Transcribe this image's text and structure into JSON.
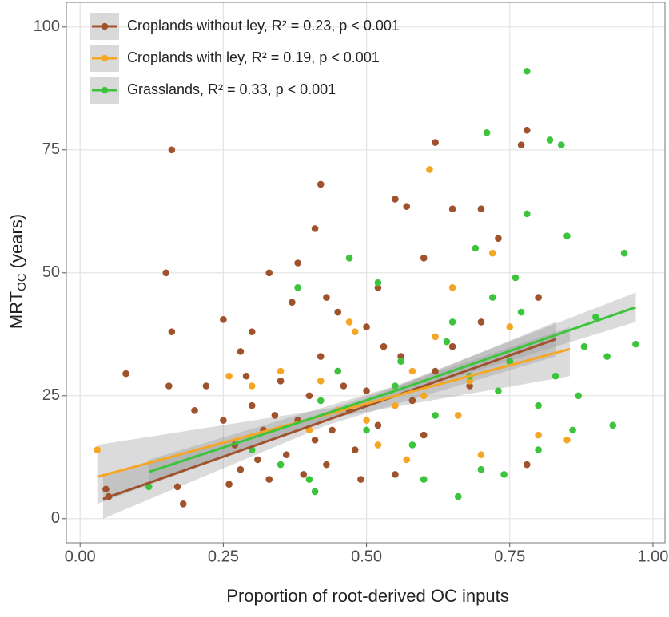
{
  "chart_data": {
    "type": "scatter",
    "x_label": "Proportion of root-derived OC inputs",
    "y_label": {
      "main": "MRT",
      "sub": "OC",
      "unit": "(years)"
    },
    "xlim": [
      -0.024,
      1.021
    ],
    "ylim": [
      -4.9,
      105
    ],
    "xticks": [
      {
        "value": 0,
        "label": "0.00"
      },
      0.25,
      {
        "value": 0.5,
        "label": "0.50"
      },
      0.75,
      {
        "value": 1,
        "label": "1.00"
      }
    ],
    "yticks": [
      0,
      25,
      50,
      75,
      100
    ],
    "grid": true,
    "legend": "top-left",
    "series": [
      {
        "name": "Croplands without ley, R² = 0.23, p < 0.001",
        "color": "#a0522d",
        "x": [
          0.08,
          0.16,
          0.15,
          0.16,
          0.155,
          0.17,
          0.18,
          0.05,
          0.045,
          0.42,
          0.41,
          0.62,
          0.78,
          0.77,
          0.55,
          0.57,
          0.25,
          0.28,
          0.3,
          0.33,
          0.37,
          0.38,
          0.43,
          0.45,
          0.5,
          0.52,
          0.6,
          0.65,
          0.7,
          0.73,
          0.2,
          0.22,
          0.25,
          0.27,
          0.28,
          0.3,
          0.32,
          0.33,
          0.35,
          0.36,
          0.38,
          0.4,
          0.41,
          0.43,
          0.45,
          0.47,
          0.48,
          0.5,
          0.52,
          0.55,
          0.56,
          0.58,
          0.6,
          0.62,
          0.65,
          0.68,
          0.7,
          0.75,
          0.78,
          0.8,
          0.26,
          0.29,
          0.31,
          0.34,
          0.39,
          0.42,
          0.44,
          0.46,
          0.49,
          0.53
        ],
        "values": [
          29.5,
          75,
          50,
          38,
          27,
          6.5,
          3,
          4.5,
          6,
          68,
          59,
          76.5,
          79,
          76,
          65,
          63.5,
          40.5,
          34,
          38,
          50,
          44,
          52,
          45,
          42,
          39,
          47,
          53,
          63,
          63,
          57,
          22,
          27,
          20,
          15,
          10,
          23,
          18,
          8,
          28,
          13,
          20,
          25,
          16,
          11,
          30,
          22,
          14,
          26,
          19,
          9,
          33,
          24,
          17,
          30,
          35,
          27,
          40,
          32,
          11,
          45,
          7,
          29,
          12,
          21,
          9,
          33,
          18,
          27,
          8,
          35
        ],
        "fit": {
          "x": [
            0.04,
            0.43,
            0.83
          ],
          "y": [
            4,
            20,
            36.5
          ],
          "lower": [
            0,
            19,
            33
          ],
          "upper": [
            9,
            21,
            40
          ]
        }
      },
      {
        "name": "Croplands with ley, R² = 0.19, p < 0.001",
        "color": "#f5a623",
        "x": [
          0.03,
          0.26,
          0.3,
          0.35,
          0.4,
          0.45,
          0.47,
          0.5,
          0.52,
          0.55,
          0.58,
          0.6,
          0.61,
          0.62,
          0.65,
          0.68,
          0.72,
          0.75,
          0.8,
          0.85,
          0.7,
          0.48,
          0.42,
          0.57,
          0.66
        ],
        "values": [
          14,
          29,
          27,
          30,
          18,
          22,
          40,
          20,
          15,
          23,
          30,
          25,
          71,
          37,
          47,
          28,
          54,
          39,
          17,
          16,
          13,
          38,
          28,
          12,
          21
        ],
        "fit": {
          "x": [
            0.03,
            0.44,
            0.855
          ],
          "y": [
            8.5,
            21.5,
            34.5
          ],
          "lower": [
            3,
            20.5,
            29
          ],
          "upper": [
            15,
            22.5,
            39
          ]
        }
      },
      {
        "name": "Grasslands, R² = 0.33, p < 0.001",
        "color": "#3cc43c",
        "x": [
          0.12,
          0.3,
          0.35,
          0.38,
          0.4,
          0.41,
          0.42,
          0.45,
          0.47,
          0.5,
          0.52,
          0.55,
          0.56,
          0.6,
          0.62,
          0.64,
          0.66,
          0.68,
          0.7,
          0.71,
          0.72,
          0.74,
          0.75,
          0.76,
          0.78,
          0.78,
          0.8,
          0.82,
          0.84,
          0.83,
          0.85,
          0.86,
          0.88,
          0.9,
          0.92,
          0.93,
          0.95,
          0.97,
          0.65,
          0.58,
          0.73,
          0.77,
          0.8,
          0.87,
          0.69
        ],
        "values": [
          6.5,
          14,
          11,
          47,
          8,
          5.5,
          24,
          30,
          53,
          18,
          48,
          27,
          32,
          8,
          21,
          36,
          4.5,
          29,
          10,
          78.5,
          45,
          9,
          32,
          49,
          91,
          62,
          23,
          77,
          76,
          29,
          57.5,
          18,
          35,
          41,
          33,
          19,
          54,
          35.5,
          40,
          15,
          26,
          42,
          14,
          25,
          55
        ],
        "fit": {
          "x": [
            0.12,
            0.55,
            0.97
          ],
          "y": [
            9.5,
            26,
            43
          ],
          "lower": [
            7,
            25,
            40
          ],
          "upper": [
            12,
            27,
            46
          ]
        }
      }
    ]
  }
}
